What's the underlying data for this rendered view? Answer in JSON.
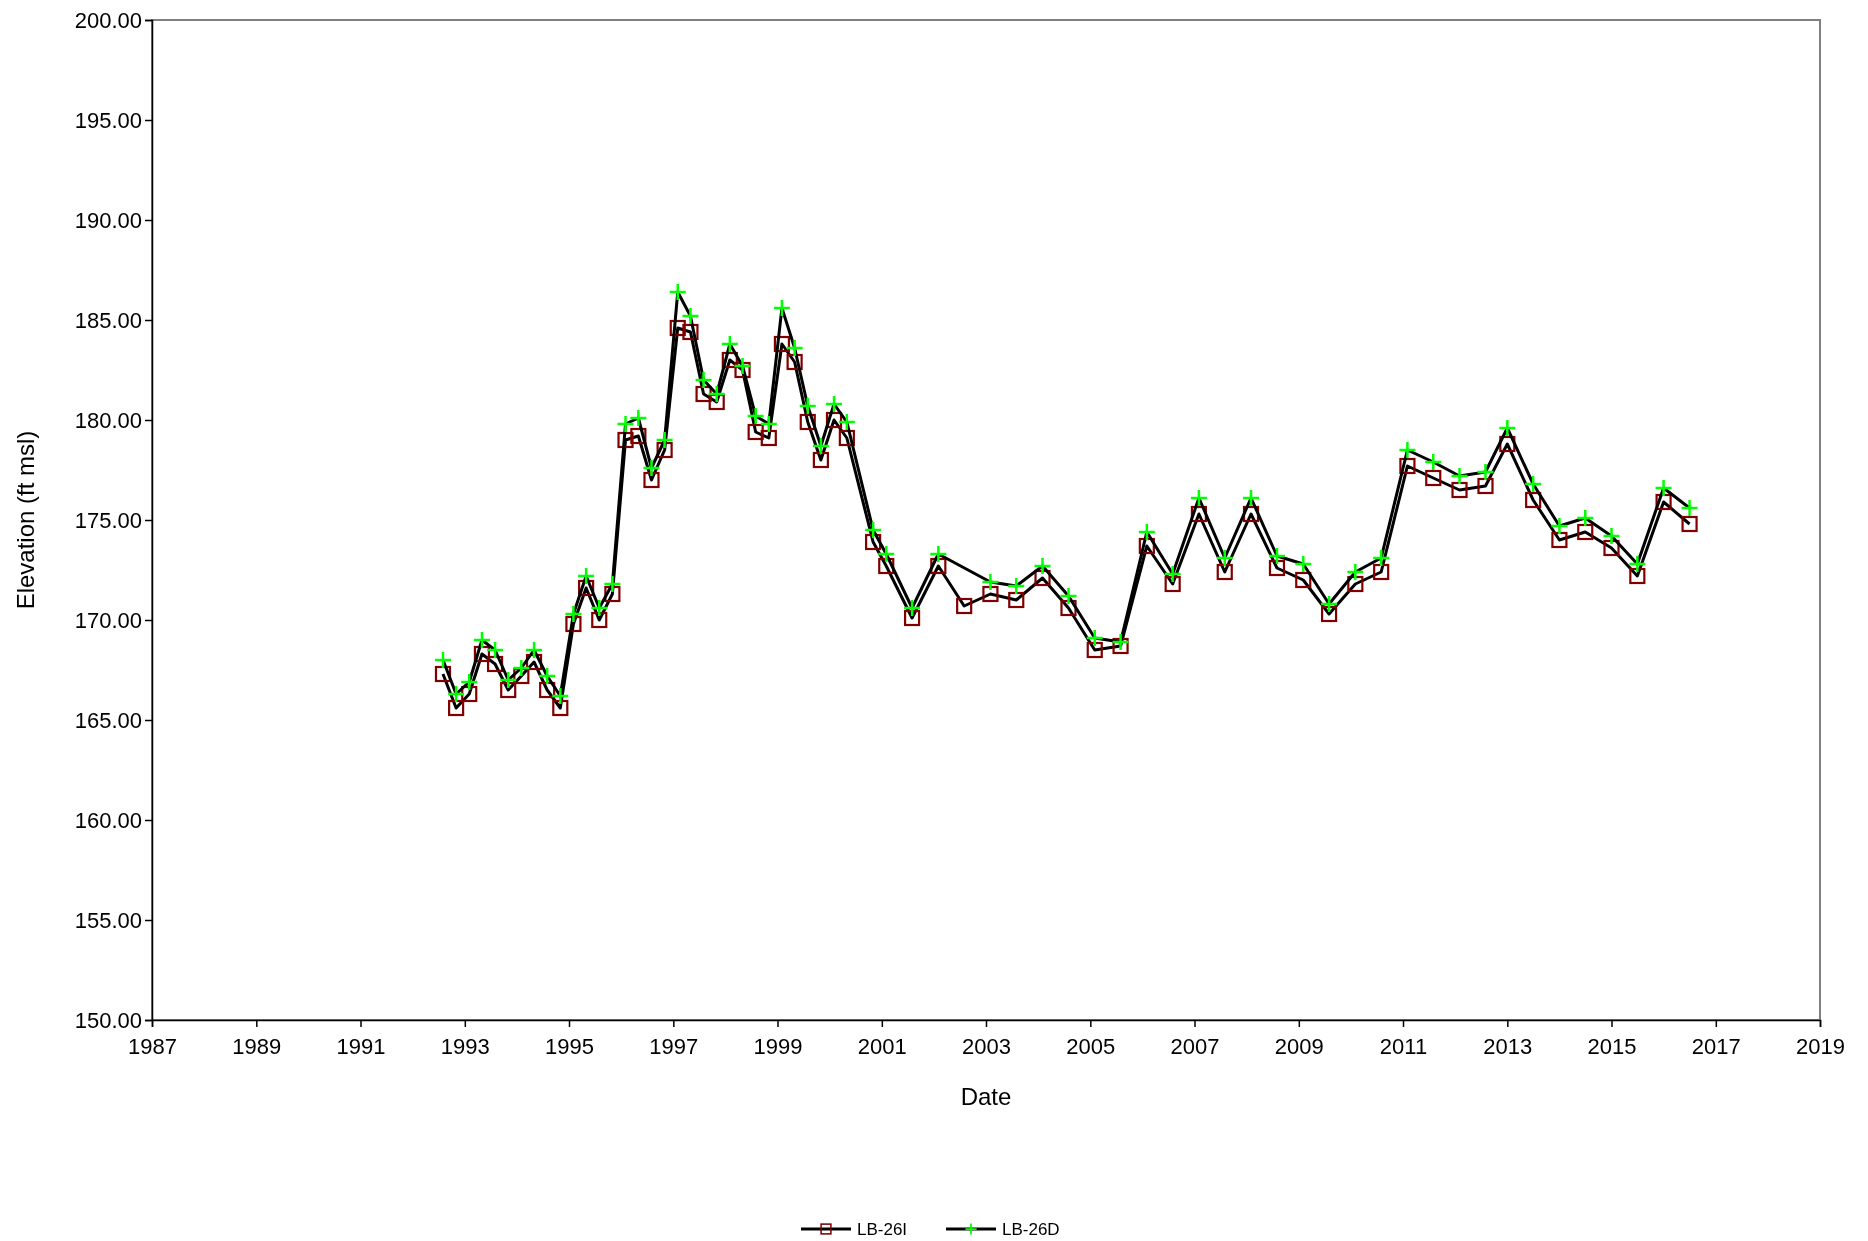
{
  "chart_data": {
    "type": "line",
    "xlabel": "Date",
    "ylabel": "Elevation (ft msl)",
    "x": [
      "1992-08",
      "1992-11",
      "1993-02",
      "1993-05",
      "1993-08",
      "1993-11",
      "1994-02",
      "1994-05",
      "1994-08",
      "1994-11",
      "1995-02",
      "1995-05",
      "1995-08",
      "1995-11",
      "1996-02",
      "1996-05",
      "1996-08",
      "1996-11",
      "1997-02",
      "1997-05",
      "1997-08",
      "1997-11",
      "1998-02",
      "1998-05",
      "1998-08",
      "1998-11",
      "1999-02",
      "1999-05",
      "1999-08",
      "1999-11",
      "2000-02",
      "2000-05",
      "2000-11",
      "2001-02",
      "2001-08",
      "2002-02",
      "2002-08",
      "2003-02",
      "2003-08",
      "2004-02",
      "2004-08",
      "2005-02",
      "2005-08",
      "2006-02",
      "2006-08",
      "2007-02",
      "2007-08",
      "2008-02",
      "2008-08",
      "2009-02",
      "2009-08",
      "2010-02",
      "2010-08",
      "2011-02",
      "2011-08",
      "2012-02",
      "2012-08",
      "2013-01",
      "2013-07",
      "2014-01",
      "2014-07",
      "2015-01",
      "2015-07",
      "2016-01",
      "2016-07"
    ],
    "series": [
      {
        "name": "LB-26I",
        "color": "#800000",
        "marker": "square",
        "values": [
          167.3,
          165.6,
          166.3,
          168.3,
          167.8,
          166.5,
          167.2,
          167.9,
          166.5,
          165.6,
          169.8,
          171.6,
          170.0,
          171.3,
          179.0,
          179.2,
          177.0,
          178.5,
          184.6,
          184.4,
          181.3,
          180.9,
          183.0,
          182.5,
          179.4,
          179.1,
          183.8,
          182.9,
          179.9,
          178.0,
          180.0,
          179.1,
          173.9,
          172.7,
          170.1,
          172.7,
          170.7,
          171.3,
          171.0,
          172.1,
          170.6,
          168.5,
          168.7,
          173.7,
          171.8,
          175.3,
          172.4,
          175.3,
          172.6,
          172.0,
          170.3,
          171.8,
          172.4,
          177.7,
          177.1,
          176.5,
          176.7,
          178.8,
          176.0,
          174.0,
          174.4,
          173.6,
          172.2,
          175.9,
          174.8
        ]
      },
      {
        "name": "LB-26D",
        "color": "#00ff00",
        "marker": "cross",
        "values": [
          168.0,
          166.3,
          166.9,
          169.0,
          168.5,
          167.0,
          167.6,
          168.5,
          167.2,
          166.2,
          170.3,
          172.2,
          170.6,
          171.8,
          179.8,
          180.1,
          177.6,
          179.0,
          186.4,
          185.2,
          182.0,
          181.3,
          183.8,
          182.7,
          180.2,
          179.8,
          185.6,
          183.6,
          180.7,
          178.7,
          180.8,
          179.9,
          174.5,
          173.3,
          170.6,
          173.3,
          null,
          171.9,
          171.7,
          172.7,
          171.2,
          169.1,
          168.9,
          174.4,
          172.3,
          176.1,
          173.1,
          176.1,
          173.2,
          172.8,
          170.8,
          172.4,
          173.1,
          178.5,
          177.9,
          177.2,
          177.4,
          179.6,
          176.8,
          174.7,
          175.1,
          174.2,
          172.8,
          176.6,
          175.6
        ]
      }
    ],
    "xlim": [
      "1987",
      "2019"
    ],
    "xticks": [
      "1987",
      "1989",
      "1991",
      "1993",
      "1995",
      "1997",
      "1999",
      "2001",
      "2003",
      "2005",
      "2007",
      "2009",
      "2011",
      "2013",
      "2015",
      "2017",
      "2019"
    ],
    "ylim": [
      150,
      200
    ],
    "yticks": [
      {
        "value": 150,
        "label": "150.00"
      },
      {
        "value": 155,
        "label": "155.00"
      },
      {
        "value": 160,
        "label": "160.00"
      },
      {
        "value": 165,
        "label": "165.00"
      },
      {
        "value": 170,
        "label": "170.00"
      },
      {
        "value": 175,
        "label": "175.00"
      },
      {
        "value": 180,
        "label": "180.00"
      },
      {
        "value": 185,
        "label": "185.00"
      },
      {
        "value": 190,
        "label": "190.00"
      },
      {
        "value": 195,
        "label": "195.00"
      },
      {
        "value": 200,
        "label": "200.00"
      }
    ],
    "grid": false,
    "legend": "bottom",
    "line_style": "solid"
  }
}
